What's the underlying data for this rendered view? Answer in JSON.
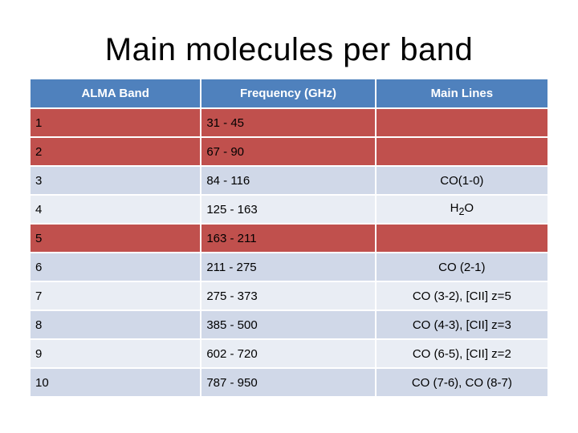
{
  "title": "Main molecules per band",
  "table": {
    "headers": [
      "ALMA Band",
      "Frequency (GHz)",
      "Main Lines"
    ],
    "rows": [
      {
        "band": "1",
        "frequency": "31 - 45",
        "lines": "",
        "style": "red"
      },
      {
        "band": "2",
        "frequency": "67 - 90",
        "lines": "",
        "style": "red"
      },
      {
        "band": "3",
        "frequency": "84 - 116",
        "lines": "CO(1-0)",
        "style": "light"
      },
      {
        "band": "4",
        "frequency": "125 - 163",
        "lines": "H2O",
        "style": "pale"
      },
      {
        "band": "5",
        "frequency": "163 - 211",
        "lines": "",
        "style": "red"
      },
      {
        "band": "6",
        "frequency": "211 - 275",
        "lines": "CO (2-1)",
        "style": "light"
      },
      {
        "band": "7",
        "frequency": "275 - 373",
        "lines": "CO (3-2), [CII] z=5",
        "style": "pale"
      },
      {
        "band": "8",
        "frequency": "385 - 500",
        "lines": "CO (4-3), [CII] z=3",
        "style": "light"
      },
      {
        "band": "9",
        "frequency": "602 - 720",
        "lines": "CO (6-5), [CII] z=2",
        "style": "pale"
      },
      {
        "band": "10",
        "frequency": "787 - 950",
        "lines": "CO (7-6), CO (8-7)",
        "style": "light"
      }
    ]
  },
  "colors": {
    "header": "#4f81bd",
    "highlight_row": "#c0504d",
    "row_light": "#d0d8e8",
    "row_pale": "#e9edf4"
  }
}
